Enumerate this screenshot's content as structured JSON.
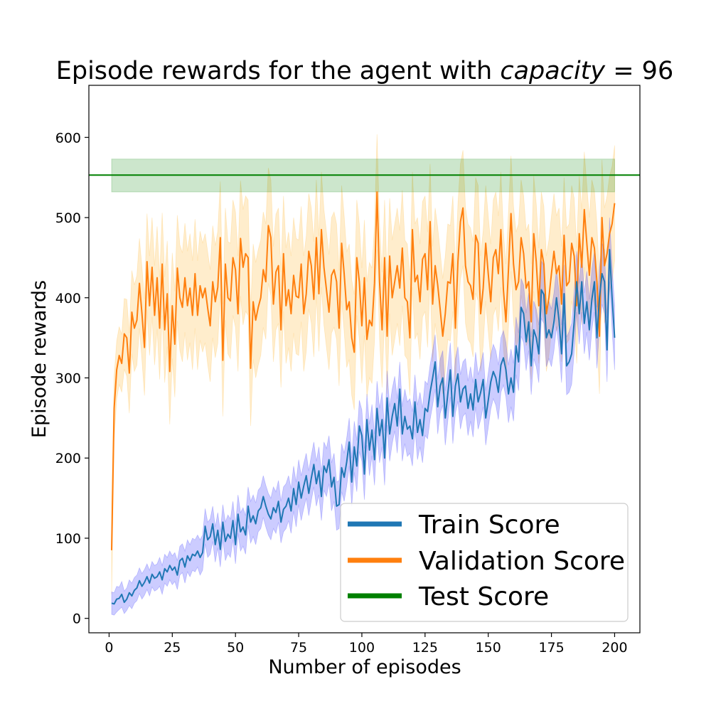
{
  "chart_data": {
    "type": "line",
    "title": "Episode rewards for the agent with ",
    "title_math": "capacity = 96",
    "title_math_var": "capacity",
    "title_math_eq": " = 96",
    "xlabel": "Number of episodes",
    "ylabel": "Episode rewards",
    "xlim": [
      -8,
      210
    ],
    "ylim": [
      -18,
      665
    ],
    "xticks": [
      0,
      25,
      50,
      75,
      100,
      125,
      150,
      175,
      200
    ],
    "yticks": [
      0,
      100,
      200,
      300,
      400,
      500,
      600
    ],
    "xtick_labels": [
      "0",
      "25",
      "50",
      "75",
      "100",
      "125",
      "150",
      "175",
      "200"
    ],
    "ytick_labels": [
      "0",
      "100",
      "200",
      "300",
      "400",
      "500",
      "600"
    ],
    "grid": false,
    "legend_position": "bottom-right",
    "colors": {
      "train": "#1f77b4",
      "train_band": "#0000ff",
      "validation": "#ff7f0e",
      "validation_band": "#ffa500",
      "test": "#008000",
      "test_band": "#008000"
    },
    "series": [
      {
        "name": "Train Score",
        "x": [
          1,
          2,
          3,
          4,
          5,
          6,
          7,
          8,
          9,
          10,
          11,
          12,
          13,
          14,
          15,
          16,
          17,
          18,
          19,
          20,
          21,
          22,
          23,
          24,
          25,
          26,
          27,
          28,
          29,
          30,
          31,
          32,
          33,
          34,
          35,
          36,
          37,
          38,
          39,
          40,
          41,
          42,
          43,
          44,
          45,
          46,
          47,
          48,
          49,
          50,
          51,
          52,
          53,
          54,
          55,
          56,
          57,
          58,
          59,
          60,
          61,
          62,
          63,
          64,
          65,
          66,
          67,
          68,
          69,
          70,
          71,
          72,
          73,
          74,
          75,
          76,
          77,
          78,
          79,
          80,
          81,
          82,
          83,
          84,
          85,
          86,
          87,
          88,
          89,
          90,
          91,
          92,
          93,
          94,
          95,
          96,
          97,
          98,
          99,
          100,
          101,
          102,
          103,
          104,
          105,
          106,
          107,
          108,
          109,
          110,
          111,
          112,
          113,
          114,
          115,
          116,
          117,
          118,
          119,
          120,
          121,
          122,
          123,
          124,
          125,
          126,
          127,
          128,
          129,
          130,
          131,
          132,
          133,
          134,
          135,
          136,
          137,
          138,
          139,
          140,
          141,
          142,
          143,
          144,
          145,
          146,
          147,
          148,
          149,
          150,
          151,
          152,
          153,
          154,
          155,
          156,
          157,
          158,
          159,
          160,
          161,
          162,
          163,
          164,
          165,
          166,
          167,
          168,
          169,
          170,
          171,
          172,
          173,
          174,
          175,
          176,
          177,
          178,
          179,
          180,
          181,
          182,
          183,
          184,
          185,
          186,
          187,
          188,
          189,
          190,
          191,
          192,
          193,
          194,
          195,
          196,
          197,
          198,
          199,
          200
        ],
        "values": [
          19,
          18,
          24,
          25,
          30,
          20,
          24,
          32,
          28,
          35,
          38,
          47,
          40,
          45,
          52,
          44,
          55,
          50,
          52,
          58,
          48,
          62,
          58,
          66,
          60,
          64,
          54,
          72,
          75,
          64,
          78,
          72,
          80,
          78,
          84,
          76,
          82,
          115,
          98,
          102,
          118,
          92,
          110,
          86,
          120,
          96,
          105,
          100,
          122,
          92,
          130,
          108,
          114,
          104,
          140,
          120,
          128,
          118,
          134,
          138,
          152,
          140,
          130,
          124,
          138,
          132,
          146,
          120,
          136,
          140,
          150,
          134,
          162,
          142,
          170,
          150,
          165,
          178,
          156,
          175,
          192,
          168,
          184,
          152,
          190,
          182,
          198,
          164,
          176,
          140,
          142,
          188,
          176,
          195,
          220,
          170,
          214,
          190,
          240,
          228,
          180,
          248,
          210,
          235,
          198,
          262,
          228,
          248,
          200,
          275,
          230,
          252,
          268,
          240,
          286,
          230,
          252,
          236,
          240,
          224,
          270,
          232,
          248,
          228,
          262,
          258,
          282,
          300,
          320,
          264,
          290,
          300,
          250,
          280,
          310,
          252,
          290,
          305,
          270,
          286,
          290,
          262,
          280,
          260,
          298,
          270,
          282,
          298,
          250,
          272,
          295,
          308,
          300,
          282,
          316,
          325,
          310,
          280,
          300,
          282,
          340,
          320,
          388,
          380,
          345,
          370,
          315,
          360,
          350,
          330,
          410,
          404,
          350,
          360,
          350,
          370,
          400,
          372,
          330,
          405,
          315,
          320,
          330,
          370,
          420,
          380,
          420,
          368,
          395,
          360,
          398,
          420,
          350,
          400,
          430,
          420,
          335,
          460,
          400,
          350
        ],
        "band": [
          14,
          14,
          16,
          14,
          16,
          14,
          14,
          16,
          16,
          16,
          16,
          16,
          16,
          16,
          16,
          16,
          16,
          16,
          16,
          18,
          18,
          18,
          18,
          18,
          18,
          18,
          18,
          18,
          18,
          20,
          20,
          20,
          20,
          20,
          20,
          22,
          22,
          22,
          22,
          22,
          22,
          22,
          22,
          22,
          22,
          24,
          24,
          24,
          24,
          24,
          24,
          24,
          24,
          24,
          24,
          26,
          26,
          26,
          26,
          26,
          26,
          26,
          26,
          26,
          26,
          26,
          26,
          26,
          28,
          28,
          28,
          28,
          28,
          28,
          28,
          28,
          28,
          28,
          28,
          28,
          28,
          28,
          30,
          30,
          30,
          30,
          30,
          30,
          30,
          30,
          30,
          30,
          30,
          30,
          30,
          30,
          32,
          32,
          32,
          32,
          32,
          32,
          32,
          32,
          32,
          34,
          34,
          34,
          34,
          34,
          34,
          34,
          34,
          34,
          34,
          34,
          34,
          34,
          34,
          34,
          34,
          34,
          34,
          34,
          34,
          34,
          34,
          34,
          34,
          34,
          34,
          34,
          34,
          34,
          34,
          34,
          34,
          34,
          34,
          34,
          34,
          34,
          34,
          34,
          34,
          34,
          34,
          34,
          34,
          34,
          34,
          34,
          34,
          34,
          34,
          34,
          34,
          36,
          36,
          36,
          36,
          36,
          36,
          36,
          36,
          36,
          36,
          36,
          36,
          36,
          36,
          36,
          36,
          36,
          36,
          36,
          36,
          36,
          36,
          36,
          36,
          38,
          38,
          38,
          38,
          38,
          38,
          38,
          38,
          38,
          38,
          38,
          38,
          38,
          38,
          40,
          40,
          40,
          40,
          40
        ]
      },
      {
        "name": "Validation Score",
        "x": [
          1,
          2,
          3,
          4,
          5,
          6,
          7,
          8,
          9,
          10,
          11,
          12,
          13,
          14,
          15,
          16,
          17,
          18,
          19,
          20,
          21,
          22,
          23,
          24,
          25,
          26,
          27,
          28,
          29,
          30,
          31,
          32,
          33,
          34,
          35,
          36,
          37,
          38,
          39,
          40,
          41,
          42,
          43,
          44,
          45,
          46,
          47,
          48,
          49,
          50,
          51,
          52,
          53,
          54,
          55,
          56,
          57,
          58,
          59,
          60,
          61,
          62,
          63,
          64,
          65,
          66,
          67,
          68,
          69,
          70,
          71,
          72,
          73,
          74,
          75,
          76,
          77,
          78,
          79,
          80,
          81,
          82,
          83,
          84,
          85,
          86,
          87,
          88,
          89,
          90,
          91,
          92,
          93,
          94,
          95,
          96,
          97,
          98,
          99,
          100,
          101,
          102,
          103,
          104,
          105,
          106,
          107,
          108,
          109,
          110,
          111,
          112,
          113,
          114,
          115,
          116,
          117,
          118,
          119,
          120,
          121,
          122,
          123,
          124,
          125,
          126,
          127,
          128,
          129,
          130,
          131,
          132,
          133,
          134,
          135,
          136,
          137,
          138,
          139,
          140,
          141,
          142,
          143,
          144,
          145,
          146,
          147,
          148,
          149,
          150,
          151,
          152,
          153,
          154,
          155,
          156,
          157,
          158,
          159,
          160,
          161,
          162,
          163,
          164,
          165,
          166,
          167,
          168,
          169,
          170,
          171,
          172,
          173,
          174,
          175,
          176,
          177,
          178,
          179,
          180,
          181,
          182,
          183,
          184,
          185,
          186,
          187,
          188,
          189,
          190,
          191,
          192,
          193,
          194,
          195,
          196,
          197,
          198,
          199,
          200
        ],
        "values": [
          85,
          262,
          310,
          328,
          318,
          355,
          350,
          306,
          382,
          362,
          372,
          418,
          380,
          338,
          445,
          390,
          438,
          378,
          425,
          362,
          442,
          360,
          405,
          308,
          390,
          342,
          437,
          400,
          388,
          425,
          390,
          412,
          378,
          430,
          378,
          415,
          400,
          412,
          387,
          365,
          420,
          395,
          413,
          475,
          322,
          442,
          400,
          396,
          450,
          435,
          380,
          474,
          438,
          455,
          450,
          312,
          395,
          372,
          388,
          400,
          435,
          420,
          490,
          475,
          392,
          432,
          440,
          360,
          455,
          390,
          410,
          380,
          428,
          402,
          400,
          442,
          380,
          405,
          458,
          440,
          398,
          475,
          405,
          485,
          438,
          410,
          382,
          428,
          435,
          420,
          362,
          468,
          430,
          385,
          395,
          350,
          332,
          450,
          420,
          365,
          425,
          348,
          372,
          365,
          418,
          532,
          420,
          360,
          450,
          352,
          452,
          400,
          420,
          440,
          412,
          462,
          400,
          395,
          350,
          485,
          420,
          428,
          395,
          448,
          455,
          410,
          495,
          392,
          440,
          416,
          385,
          352,
          380,
          420,
          418,
          455,
          362,
          445,
          495,
          512,
          440,
          420,
          415,
          398,
          478,
          468,
          380,
          412,
          468,
          430,
          395,
          450,
          460,
          430,
          485,
          410,
          370,
          435,
          505,
          442,
          410,
          420,
          475,
          455,
          412,
          420,
          370,
          480,
          445,
          390,
          460,
          442,
          380,
          400,
          430,
          458,
          430,
          440,
          392,
          478,
          415,
          420,
          468,
          452,
          390,
          480,
          438,
          510,
          468,
          428,
          475,
          462,
          420,
          352,
          500,
          440,
          455,
          480,
          492,
          518
        ],
        "band": [
          55,
          40,
          36,
          36,
          36,
          44,
          48,
          50,
          52,
          54,
          56,
          56,
          58,
          60,
          60,
          62,
          62,
          62,
          64,
          64,
          64,
          66,
          66,
          66,
          66,
          66,
          66,
          66,
          68,
          68,
          68,
          68,
          68,
          68,
          68,
          68,
          68,
          68,
          70,
          70,
          70,
          70,
          70,
          70,
          70,
          70,
          70,
          72,
          72,
          72,
          72,
          72,
          72,
          72,
          72,
          72,
          72,
          72,
          72,
          72,
          72,
          72,
          72,
          72,
          72,
          72,
          72,
          72,
          72,
          72,
          72,
          72,
          72,
          72,
          72,
          72,
          72,
          72,
          72,
          72,
          72,
          72,
          72,
          72,
          72,
          72,
          72,
          72,
          72,
          72,
          72,
          72,
          72,
          72,
          72,
          72,
          72,
          72,
          72,
          72,
          72,
          72,
          72,
          72,
          72,
          72,
          72,
          72,
          72,
          72,
          72,
          72,
          72,
          72,
          72,
          72,
          72,
          72,
          72,
          72,
          72,
          72,
          72,
          72,
          72,
          72,
          72,
          72,
          72,
          72,
          72,
          72,
          72,
          72,
          72,
          72,
          72,
          72,
          72,
          72,
          72,
          72,
          72,
          72,
          72,
          72,
          72,
          72,
          72,
          72,
          72,
          72,
          72,
          72,
          72,
          72,
          72,
          72,
          72,
          72,
          72,
          72,
          72,
          72,
          72,
          72,
          72,
          72,
          72,
          72,
          72,
          72,
          72,
          72,
          72,
          72,
          72,
          72,
          72,
          72,
          72,
          72,
          72,
          72,
          72,
          72,
          72,
          72,
          72,
          72,
          72,
          72,
          72,
          72,
          72,
          72,
          72,
          72,
          72,
          72
        ]
      },
      {
        "name": "Test Score",
        "value": 553,
        "band_low": 532,
        "band_high": 573,
        "band_x": [
          1,
          200
        ]
      }
    ]
  }
}
